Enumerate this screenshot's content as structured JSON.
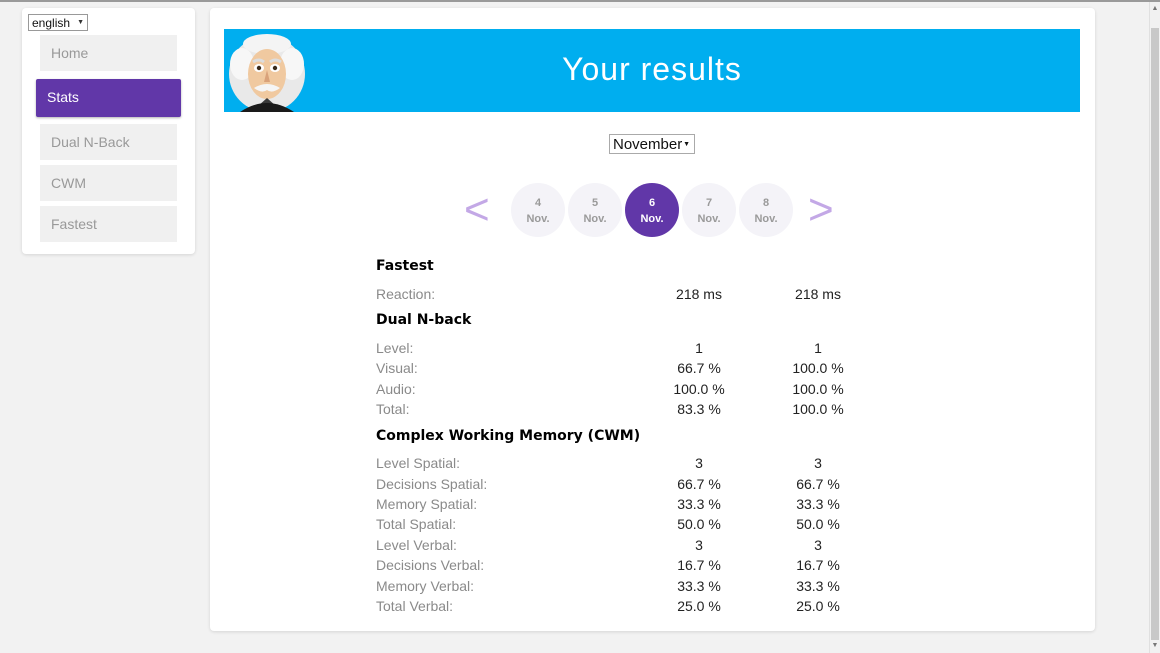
{
  "language": {
    "selected": "english"
  },
  "nav": {
    "items": [
      {
        "label": "Home",
        "active": false
      },
      {
        "label": "Stats",
        "active": true
      },
      {
        "label": "Dual N-Back",
        "active": false
      },
      {
        "label": "CWM",
        "active": false
      },
      {
        "label": "Fastest",
        "active": false
      }
    ]
  },
  "banner": {
    "title": "Your results"
  },
  "month": {
    "selected": "November"
  },
  "days": [
    {
      "num": "4",
      "month": "Nov."
    },
    {
      "num": "5",
      "month": "Nov."
    },
    {
      "num": "6",
      "month": "Nov.",
      "active": true
    },
    {
      "num": "7",
      "month": "Nov."
    },
    {
      "num": "8",
      "month": "Nov."
    }
  ],
  "arrows": {
    "prev": "<",
    "next": ">"
  },
  "sections": {
    "fastest": {
      "title": "Fastest",
      "rows": [
        {
          "label": "Reaction:",
          "v1": "218 ms",
          "v2": "218 ms"
        }
      ]
    },
    "dual": {
      "title": "Dual N-back",
      "rows": [
        {
          "label": "Level:",
          "v1": "1",
          "v2": "1"
        },
        {
          "label": "Visual:",
          "v1": "66.7 %",
          "v2": "100.0 %"
        },
        {
          "label": "Audio:",
          "v1": "100.0 %",
          "v2": "100.0 %"
        },
        {
          "label": "Total:",
          "v1": "83.3 %",
          "v2": "100.0 %"
        }
      ]
    },
    "cwm": {
      "title": "Complex Working Memory (CWM)",
      "rows": [
        {
          "label": "Level Spatial:",
          "v1": "3",
          "v2": "3"
        },
        {
          "label": "Decisions Spatial:",
          "v1": "66.7 %",
          "v2": "66.7 %"
        },
        {
          "label": "Memory Spatial:",
          "v1": "33.3 %",
          "v2": "33.3 %"
        },
        {
          "label": "Total Spatial:",
          "v1": "50.0 %",
          "v2": "50.0 %"
        },
        {
          "label": "Level Verbal:",
          "v1": "3",
          "v2": "3"
        },
        {
          "label": "Decisions Verbal:",
          "v1": "16.7 %",
          "v2": "16.7 %"
        },
        {
          "label": "Memory Verbal:",
          "v1": "33.3 %",
          "v2": "33.3 %"
        },
        {
          "label": "Total Verbal:",
          "v1": "25.0 %",
          "v2": "25.0 %"
        }
      ]
    }
  },
  "colors": {
    "accent": "#6137a8",
    "banner": "#00aeef"
  },
  "icons": {
    "avatar": "einstein-avatar-icon",
    "dropdown": "caret-down-icon"
  }
}
